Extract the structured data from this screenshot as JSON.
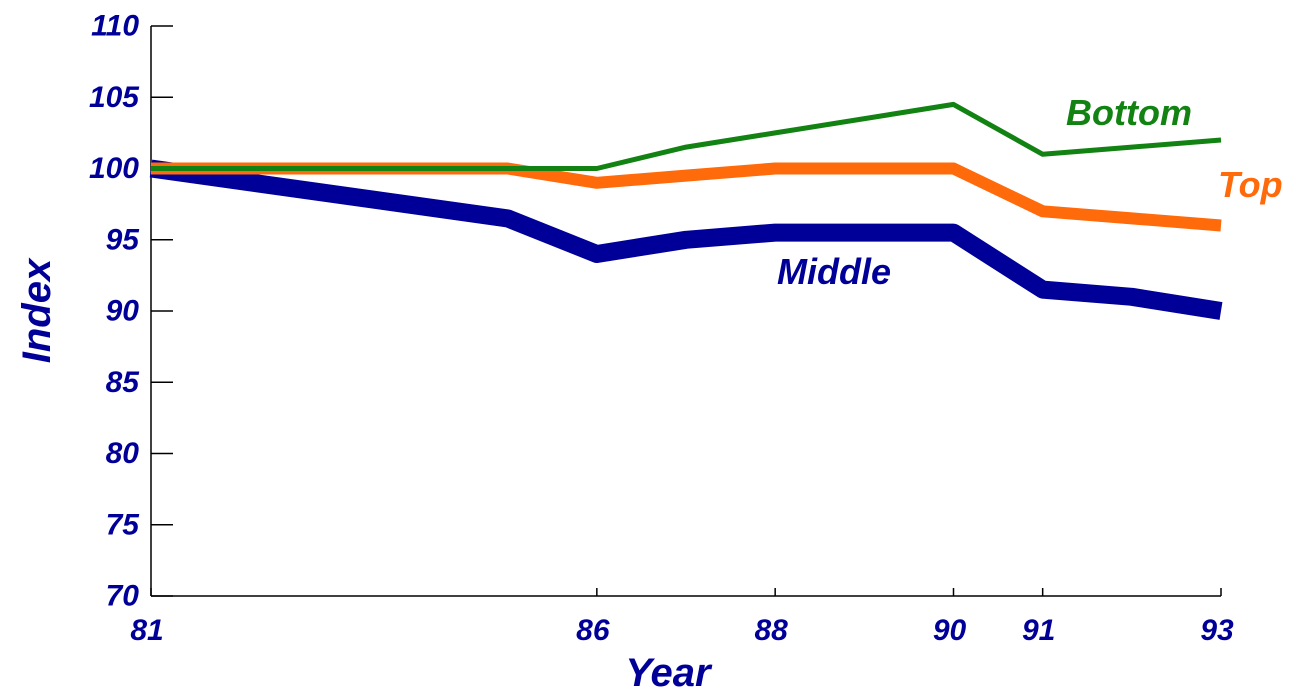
{
  "chart_data": {
    "type": "line",
    "xlabel": "Year",
    "ylabel": "Index",
    "x": [
      81,
      86,
      88,
      90,
      91,
      93
    ],
    "x_tick_labels": [
      "81",
      "86",
      "88",
      "90",
      "91",
      "93"
    ],
    "xlim": [
      81,
      93
    ],
    "ylim": [
      70,
      110
    ],
    "y_ticks": [
      70,
      75,
      80,
      85,
      90,
      95,
      100,
      105,
      110
    ],
    "y_tick_labels": [
      "70",
      "75",
      "80",
      "85",
      "90",
      "95",
      "100",
      "105",
      "110"
    ],
    "grid": false,
    "legend": "inline labels",
    "axis_color": "#000099",
    "series": [
      {
        "name": "Bottom",
        "color": "#128212",
        "x": [
          81,
          85,
          86,
          87,
          88,
          90,
          91,
          92,
          93
        ],
        "values": [
          100,
          100,
          100,
          101.5,
          102.5,
          104.5,
          101,
          101.5,
          102
        ]
      },
      {
        "name": "Top",
        "color": "#ff6a0a",
        "x": [
          81,
          85,
          86,
          87,
          88,
          90,
          91,
          92,
          93
        ],
        "values": [
          100,
          100,
          99,
          99.5,
          100,
          100,
          97,
          96.5,
          96
        ]
      },
      {
        "name": "Middle",
        "color": "#000099",
        "x": [
          81,
          85,
          86,
          87,
          88,
          90,
          91,
          92,
          93
        ],
        "values": [
          100,
          96.5,
          94,
          95,
          95.5,
          95.5,
          91.5,
          91,
          90
        ]
      }
    ]
  }
}
